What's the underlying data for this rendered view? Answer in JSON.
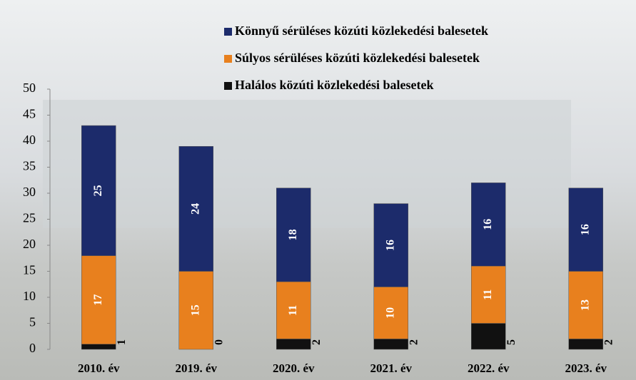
{
  "chart_data": {
    "type": "stacked_bar",
    "categories": [
      "2010. év",
      "2019. év",
      "2020. év",
      "2021. év",
      "2022. év",
      "2023. év"
    ],
    "series": [
      {
        "name": "Halálos közúti közlekedési balesetek",
        "color": "#111111",
        "values": [
          1,
          0,
          2,
          2,
          5,
          2
        ]
      },
      {
        "name": "Súlyos sérüléses közúti közlekedési balesetek",
        "color": "#e8801e",
        "values": [
          17,
          15,
          11,
          10,
          11,
          13
        ]
      },
      {
        "name": "Könnyű sérüléses közúti közlekedési balesetek",
        "color": "#1c2b6b",
        "values": [
          25,
          24,
          18,
          16,
          16,
          16
        ]
      }
    ],
    "ylim": [
      0,
      50
    ],
    "yticks": [
      0,
      5,
      10,
      15,
      20,
      25,
      30,
      35,
      40,
      45,
      50
    ]
  }
}
